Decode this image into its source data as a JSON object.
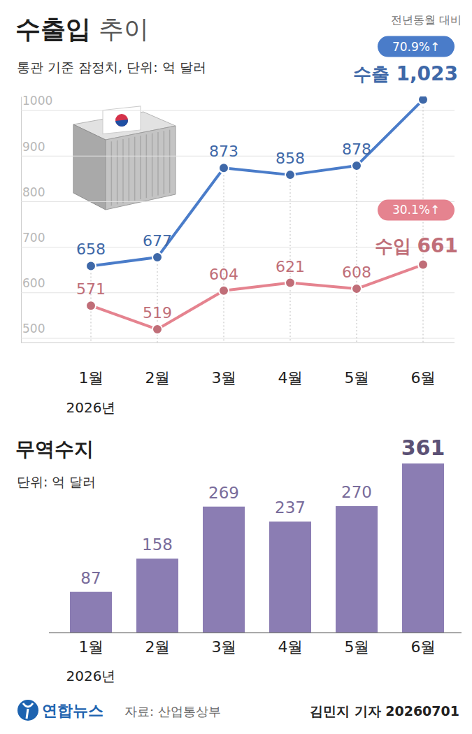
{
  "chart_data": [
    {
      "type": "line",
      "title": "수출입 추이",
      "subtitle": "통관 기준 잠정치, 단위: 억 달러",
      "yoy_title": "전년동월 대비",
      "categories": [
        "1월",
        "2월",
        "3월",
        "4월",
        "5월",
        "6월"
      ],
      "year_label": "2026년",
      "series": [
        {
          "name": "수출",
          "color": "#4a7cc9",
          "marker": "circle",
          "values": [
            658,
            677,
            873,
            858,
            878,
            1023
          ],
          "value_labels": [
            "658",
            "677",
            "873",
            "858",
            "878",
            "1,023"
          ],
          "yoy_label": "70.9%↑"
        },
        {
          "name": "수입",
          "color": "#e5838f",
          "marker": "circle",
          "values": [
            571,
            519,
            604,
            621,
            608,
            661
          ],
          "value_labels": [
            "571",
            "519",
            "604",
            "621",
            "608",
            "661"
          ],
          "yoy_label": "30.1%↑"
        }
      ],
      "ylim": [
        490,
        1030
      ],
      "yticks": [
        500,
        600,
        700,
        800,
        900,
        1000
      ],
      "grid": true,
      "data_labels": true
    },
    {
      "type": "bar",
      "title": "무역수지",
      "subtitle": "단위: 억 달러",
      "categories": [
        "1월",
        "2월",
        "3월",
        "4월",
        "5월",
        "6월"
      ],
      "year_label": "2026년",
      "values": [
        87,
        158,
        269,
        237,
        270,
        361
      ],
      "color": "#8b7db3",
      "ylim": [
        0,
        370
      ],
      "data_labels": true,
      "tick_labels": "x"
    }
  ],
  "footer": {
    "publisher": "연합뉴스",
    "source": "자료: 산업통상부",
    "byline": "김민지 기자 20260701"
  }
}
